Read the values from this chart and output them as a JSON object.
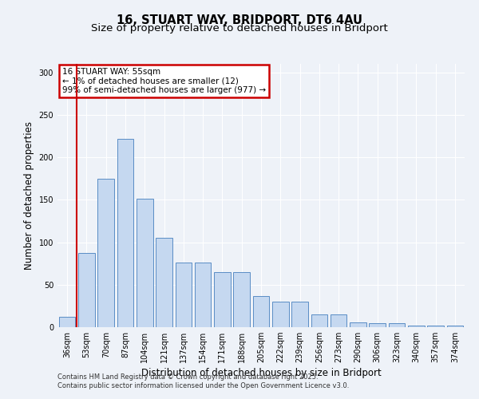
{
  "title": "16, STUART WAY, BRIDPORT, DT6 4AU",
  "subtitle": "Size of property relative to detached houses in Bridport",
  "xlabel": "Distribution of detached houses by size in Bridport",
  "ylabel": "Number of detached properties",
  "categories": [
    "36sqm",
    "53sqm",
    "70sqm",
    "87sqm",
    "104sqm",
    "121sqm",
    "137sqm",
    "154sqm",
    "171sqm",
    "188sqm",
    "205sqm",
    "222sqm",
    "239sqm",
    "256sqm",
    "273sqm",
    "290sqm",
    "306sqm",
    "323sqm",
    "340sqm",
    "357sqm",
    "374sqm"
  ],
  "values": [
    12,
    87,
    175,
    222,
    151,
    105,
    76,
    76,
    65,
    65,
    37,
    30,
    30,
    15,
    15,
    6,
    5,
    5,
    2,
    2,
    2
  ],
  "bar_color": "#c5d8f0",
  "bar_edge_color": "#5a8dc5",
  "property_line_color": "#cc0000",
  "annotation_title": "16 STUART WAY: 55sqm",
  "annotation_line1": "← 1% of detached houses are smaller (12)",
  "annotation_line2": "99% of semi-detached houses are larger (977) →",
  "annotation_box_color": "#ffffff",
  "annotation_box_edge": "#cc0000",
  "ylim": [
    0,
    310
  ],
  "yticks": [
    0,
    50,
    100,
    150,
    200,
    250,
    300
  ],
  "footer_line1": "Contains HM Land Registry data © Crown copyright and database right 2025.",
  "footer_line2": "Contains public sector information licensed under the Open Government Licence v3.0.",
  "bg_color": "#eef2f8",
  "grid_color": "#ffffff",
  "title_fontsize": 10.5,
  "subtitle_fontsize": 9.5,
  "axis_label_fontsize": 8.5,
  "tick_fontsize": 7,
  "annotation_fontsize": 7.5,
  "footer_fontsize": 6
}
